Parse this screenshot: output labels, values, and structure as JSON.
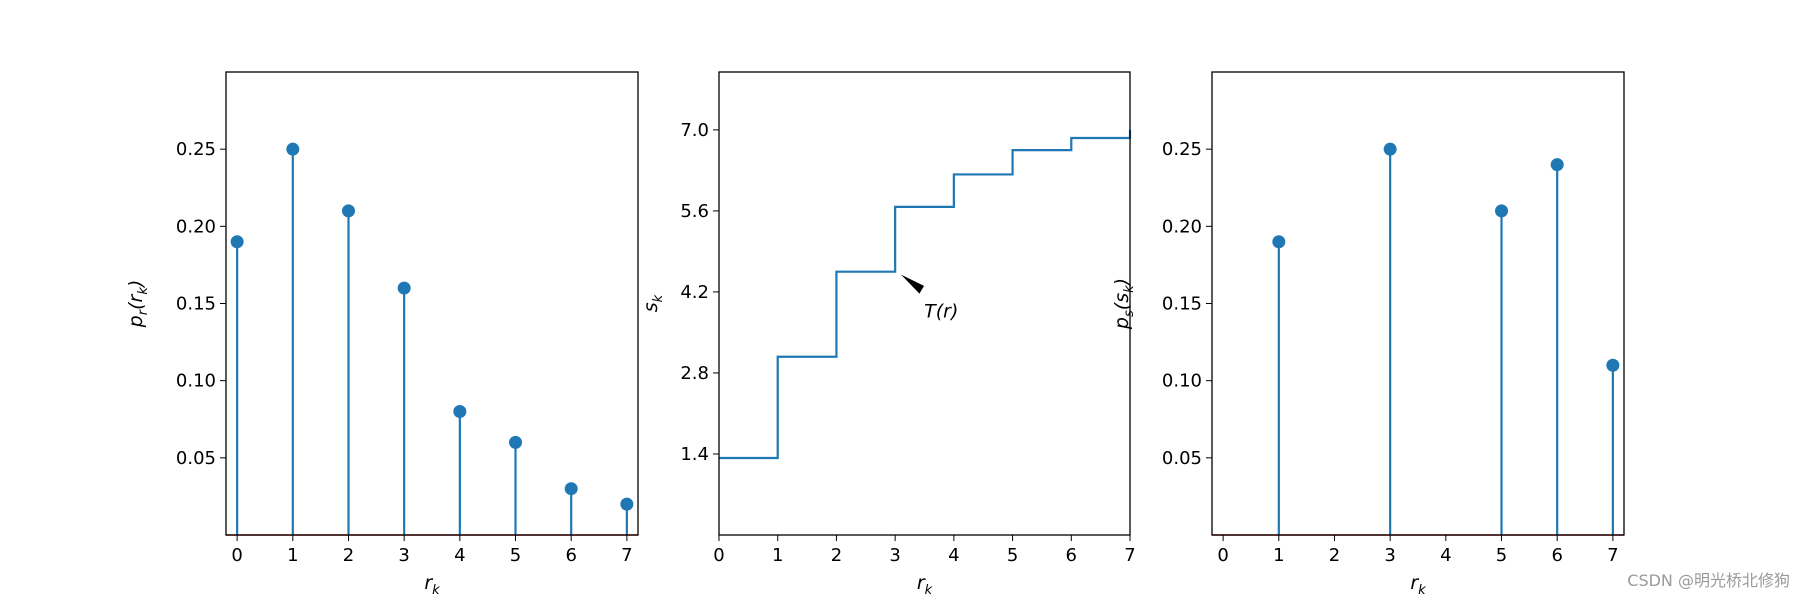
{
  "chart_data": [
    {
      "type": "stem",
      "x": [
        0,
        1,
        2,
        3,
        4,
        5,
        6,
        7
      ],
      "values": [
        0.19,
        0.25,
        0.21,
        0.16,
        0.08,
        0.06,
        0.03,
        0.02
      ],
      "xlabel": "r_k",
      "ylabel": "p_r(r_k)",
      "xticks": [
        "0",
        "1",
        "2",
        "3",
        "4",
        "5",
        "6",
        "7"
      ],
      "yticks": [
        "0.05",
        "0.10",
        "0.15",
        "0.20",
        "0.25"
      ],
      "xlim": [
        -0.2,
        7.2
      ],
      "ylim": [
        0,
        0.3
      ],
      "color": "#1f77b4",
      "grid": false
    },
    {
      "type": "line",
      "step": "post",
      "x": [
        0,
        1,
        2,
        3,
        4,
        5,
        6,
        7
      ],
      "values": [
        1.33,
        3.08,
        4.55,
        5.67,
        6.23,
        6.65,
        6.86,
        7.0
      ],
      "xlabel": "s_k",
      "xlabel_text": "r_k",
      "ylabel": "s_k",
      "xticks": [
        "0",
        "1",
        "2",
        "3",
        "4",
        "5",
        "6",
        "7"
      ],
      "yticks": [
        "1.4",
        "2.8",
        "4.2",
        "5.6",
        "7.0"
      ],
      "xlim": [
        0,
        7
      ],
      "ylim": [
        0,
        8
      ],
      "color": "#1f77b4",
      "annotation": {
        "text": "T(r)",
        "xy": [
          3.1,
          4.5
        ],
        "text_xy": [
          3.8,
          3.9
        ]
      },
      "grid": false
    },
    {
      "type": "stem",
      "x": [
        1,
        3,
        5,
        6,
        7
      ],
      "values": [
        0.19,
        0.25,
        0.21,
        0.24,
        0.11
      ],
      "xlabel": "r_k",
      "ylabel": "p_s(s_k)",
      "xticks": [
        "0",
        "1",
        "2",
        "3",
        "4",
        "5",
        "6",
        "7"
      ],
      "yticks": [
        "0.05",
        "0.10",
        "0.15",
        "0.20",
        "0.25"
      ],
      "xlim": [
        -0.2,
        7.2
      ],
      "ylim": [
        0,
        0.3
      ],
      "color": "#1f77b4",
      "grid": false
    }
  ],
  "watermark": "CSDN @明光桥北修狗"
}
